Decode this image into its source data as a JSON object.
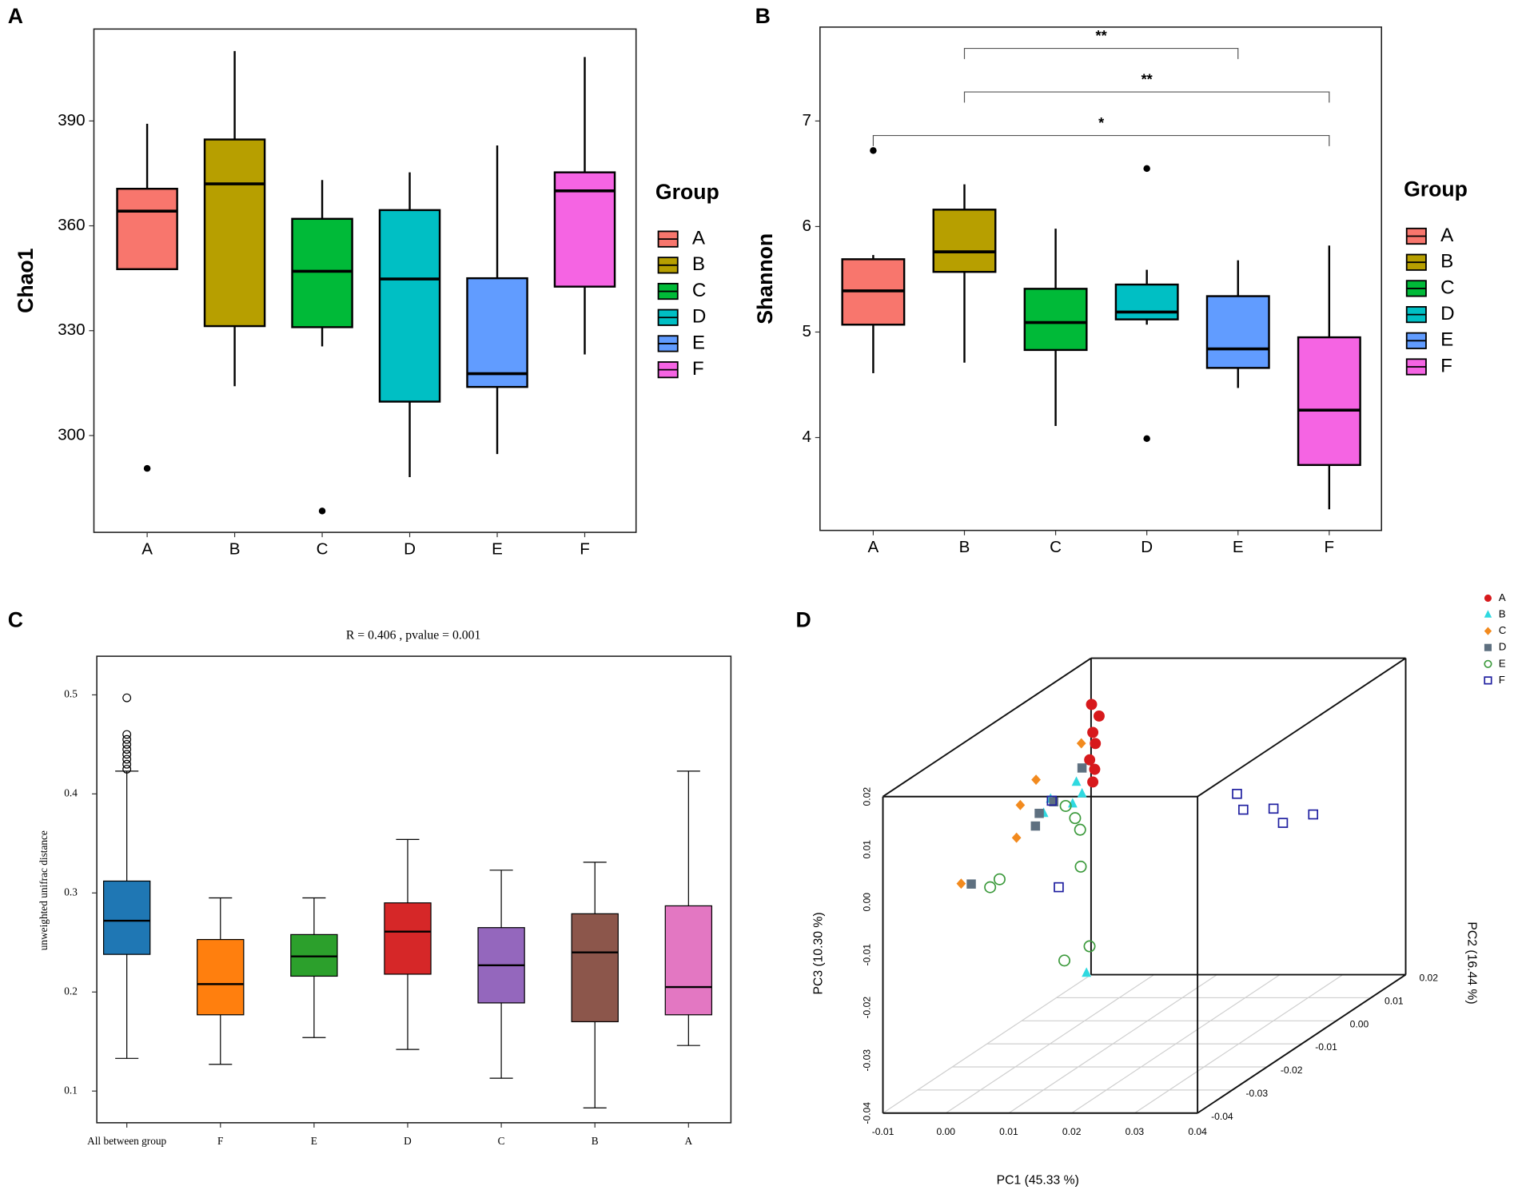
{
  "chart_data": [
    {
      "type": "box",
      "panel_label": "A",
      "ylabel": "Chao1",
      "legend_title": "Group",
      "categories": [
        "A",
        "B",
        "C",
        "D",
        "E",
        "F"
      ],
      "colors": [
        "#F8766D",
        "#B79F00",
        "#00BA38",
        "#00BFC4",
        "#619CFF",
        "#F564E3"
      ],
      "boxes": [
        {
          "whislo": 347.6,
          "q1": 347.6,
          "med": 364.2,
          "q3": 370.6,
          "whishi": 389.2,
          "fliers": [
            290.6
          ]
        },
        {
          "whislo": 314.1,
          "q1": 331.3,
          "med": 372,
          "q3": 384.7,
          "whishi": 410,
          "fliers": []
        },
        {
          "whislo": 325.5,
          "q1": 331,
          "med": 347,
          "q3": 362,
          "whishi": 373.1,
          "fliers": [
            278.4
          ]
        },
        {
          "whislo": 288.1,
          "q1": 309.7,
          "med": 344.8,
          "q3": 364.5,
          "whishi": 375.3,
          "fliers": []
        },
        {
          "whislo": 294.7,
          "q1": 313.9,
          "med": 317.7,
          "q3": 345,
          "whishi": 383,
          "fliers": []
        },
        {
          "whislo": 323.2,
          "q1": 342.6,
          "med": 370,
          "q3": 375.3,
          "whishi": 408.3,
          "fliers": []
        }
      ],
      "ylim": [
        272.3,
        416.3
      ],
      "yticks": [
        300,
        330,
        360,
        390
      ],
      "legend": true
    },
    {
      "type": "box",
      "panel_label": "B",
      "ylabel": "Shannon",
      "legend_title": "Group",
      "categories": [
        "A",
        "B",
        "C",
        "D",
        "E",
        "F"
      ],
      "colors": [
        "#F8766D",
        "#B79F00",
        "#00BA38",
        "#00BFC4",
        "#619CFF",
        "#F564E3"
      ],
      "boxes": [
        {
          "whislo": 4.61,
          "q1": 5.07,
          "med": 5.39,
          "q3": 5.69,
          "whishi": 5.73,
          "fliers": [
            6.72
          ]
        },
        {
          "whislo": 4.71,
          "q1": 5.57,
          "med": 5.76,
          "q3": 6.16,
          "whishi": 6.4,
          "fliers": []
        },
        {
          "whislo": 4.11,
          "q1": 4.83,
          "med": 5.09,
          "q3": 5.41,
          "whishi": 5.98,
          "fliers": []
        },
        {
          "whislo": 5.07,
          "q1": 5.12,
          "med": 5.19,
          "q3": 5.45,
          "whishi": 5.59,
          "fliers": [
            6.55,
            3.99
          ]
        },
        {
          "whislo": 4.47,
          "q1": 4.66,
          "med": 4.84,
          "q3": 5.34,
          "whishi": 5.68,
          "fliers": []
        },
        {
          "whislo": 3.32,
          "q1": 3.74,
          "med": 4.26,
          "q3": 4.95,
          "whishi": 5.82,
          "fliers": []
        }
      ],
      "ylim": [
        3.12,
        7.89
      ],
      "yticks": [
        4,
        5,
        6,
        7
      ],
      "legend": true,
      "annotations": [
        {
          "text": "**",
          "from": "B",
          "to": "E"
        },
        {
          "text": "**",
          "from": "B",
          "to": "F"
        },
        {
          "text": "*",
          "from": "A",
          "to": "F"
        }
      ]
    },
    {
      "type": "box",
      "panel_label": "C",
      "title": "R = 0.406 , pvalue = 0.001",
      "ylabel": "unweighted unifrac distance",
      "categories": [
        "All between group",
        "F",
        "E",
        "D",
        "C",
        "B",
        "A"
      ],
      "colors": [
        "#1f77b4",
        "#ff7f0e",
        "#2ca02c",
        "#d62728",
        "#9467bd",
        "#8c564b",
        "#e377c2"
      ],
      "boxes": [
        {
          "whislo": 0.133,
          "q1": 0.238,
          "med": 0.272,
          "q3": 0.312,
          "whishi": 0.423,
          "fliers": [
            0.425,
            0.43,
            0.435,
            0.44,
            0.445,
            0.45,
            0.455,
            0.46,
            0.497
          ]
        },
        {
          "whislo": 0.127,
          "q1": 0.177,
          "med": 0.208,
          "q3": 0.253,
          "whishi": 0.295,
          "fliers": []
        },
        {
          "whislo": 0.154,
          "q1": 0.216,
          "med": 0.236,
          "q3": 0.258,
          "whishi": 0.295,
          "fliers": []
        },
        {
          "whislo": 0.142,
          "q1": 0.218,
          "med": 0.261,
          "q3": 0.29,
          "whishi": 0.354,
          "fliers": []
        },
        {
          "whislo": 0.113,
          "q1": 0.189,
          "med": 0.227,
          "q3": 0.265,
          "whishi": 0.323,
          "fliers": []
        },
        {
          "whislo": 0.083,
          "q1": 0.17,
          "med": 0.24,
          "q3": 0.279,
          "whishi": 0.331,
          "fliers": []
        },
        {
          "whislo": 0.146,
          "q1": 0.177,
          "med": 0.205,
          "q3": 0.287,
          "whishi": 0.423,
          "fliers": []
        }
      ],
      "ylim": [
        0.068,
        0.539
      ],
      "yticks": [
        0.1,
        0.2,
        0.3,
        0.4,
        0.5
      ],
      "legend": false
    },
    {
      "type": "scatter3d",
      "panel_label": "D",
      "xlabel": "PC1 (45.33 %)",
      "ylabel": "PC2 (16.44 %)",
      "zlabel": "PC3 (10.30 %)",
      "xlim": [
        -0.01,
        0.04
      ],
      "ylim": [
        -0.04,
        0.02
      ],
      "zlim": [
        -0.04,
        0.02
      ],
      "xticks": [
        -0.01,
        {
          "value": 0,
          "label": "0.00"
        },
        0.01,
        0.02,
        0.03,
        0.04
      ],
      "yticks": [
        -0.04,
        -0.03,
        -0.02,
        -0.01,
        {
          "value": 0,
          "label": "0.00"
        },
        0.01,
        0.02
      ],
      "zticks": [
        -0.04,
        -0.03,
        -0.02,
        -0.01,
        {
          "value": 0,
          "label": "0.00"
        },
        0.01,
        0.02
      ],
      "grid": true,
      "series": [
        {
          "name": "A",
          "color": "#d7191c",
          "marker": "circle",
          "filled": true,
          "x": [
            0.0,
            0.0012,
            0.0002,
            0.0006,
            -0.0003,
            0.0005,
            0.0002
          ],
          "y": [
            0.002,
            0.002,
            0.002,
            0.002,
            0.002,
            0.002,
            0.002
          ],
          "z": [
            0.0191,
            0.0169,
            0.0138,
            0.0117,
            0.0086,
            0.0068,
            0.0044
          ]
        },
        {
          "name": "B",
          "color": "#2fd9e0",
          "marker": "triangle",
          "filled": true,
          "x": [
            0.0009,
            0.0018,
            0.0003,
            -0.0032,
            -0.0043,
            0.0025
          ],
          "y": [
            -0.004,
            -0.004,
            -0.004,
            -0.004,
            -0.004,
            -0.004
          ],
          "z": [
            0.007,
            0.0048,
            0.0029,
            0.0038,
            0.0011,
            -0.0292
          ]
        },
        {
          "name": "C",
          "color": "#f28a1e",
          "marker": "diamond",
          "filled": true,
          "x": [
            0.0083,
            0.0011,
            -0.0014,
            -0.002,
            -0.0108
          ],
          "y": [
            -0.016,
            -0.016,
            -0.016,
            -0.016,
            -0.016
          ],
          "z": [
            0.0196,
            0.0127,
            0.0079,
            0.0017,
            -0.007
          ]
        },
        {
          "name": "D",
          "color": "#5e7080",
          "marker": "square",
          "filled": true,
          "x": [
            0.0051,
            0.0006,
            -0.0017,
            -0.0023,
            -0.0125
          ],
          "y": [
            -0.01,
            -0.01,
            -0.01,
            -0.01,
            -0.01
          ],
          "z": [
            0.0123,
            0.0059,
            0.0037,
            0.0013,
            -0.0097
          ]
        },
        {
          "name": "E",
          "color": "#3c9a3c",
          "marker": "circle",
          "filled": false,
          "x": [
            0.0025,
            0.004,
            0.0048,
            0.0049,
            -0.008,
            -0.0095,
            0.0063,
            0.0023
          ],
          "y": [
            -0.01,
            -0.01,
            -0.01,
            -0.01,
            -0.01,
            -0.01,
            -0.01,
            -0.01
          ],
          "z": [
            0.0051,
            0.0028,
            0.0006,
            -0.0064,
            -0.0088,
            -0.0103,
            -0.0215,
            -0.0242
          ]
        },
        {
          "name": "F",
          "color": "#1f1fa0",
          "marker": "square",
          "filled": false,
          "x": [
            0.0003,
            0.0014,
            0.0165,
            0.0175,
            0.0223,
            0.0238,
            0.0286
          ],
          "y": [
            -0.01,
            -0.01,
            0.014,
            0.014,
            0.014,
            0.014,
            0.014
          ],
          "z": [
            0.0061,
            -0.0103,
            -0.0031,
            -0.0061,
            -0.0059,
            -0.0086,
            -0.007
          ]
        }
      ]
    }
  ]
}
